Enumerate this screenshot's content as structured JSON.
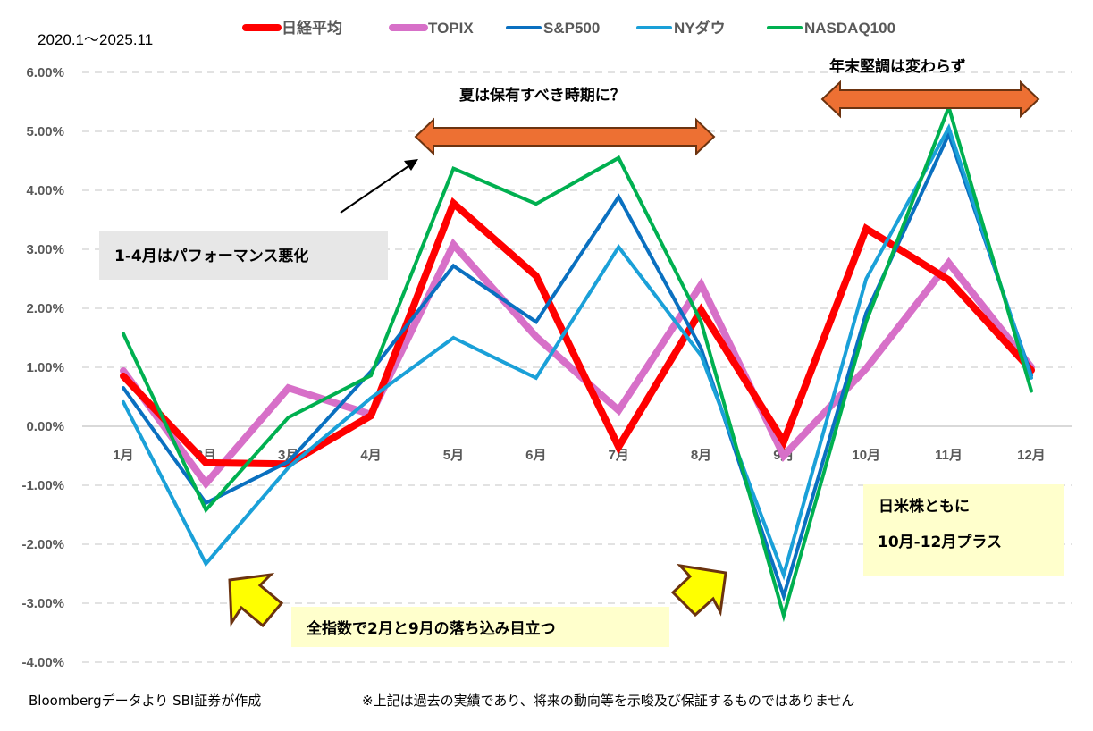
{
  "chart_data": {
    "type": "line",
    "title": "",
    "period_label": "2020.1〜2025.11",
    "xlabel": "",
    "ylabel": "",
    "categories": [
      "1月",
      "2月",
      "3月",
      "4月",
      "5月",
      "6月",
      "7月",
      "8月",
      "9月",
      "10月",
      "11月",
      "12月"
    ],
    "ylim": [
      -4,
      6
    ],
    "yticks": [
      6,
      5,
      4,
      3,
      2,
      1,
      0,
      -1,
      -2,
      -3,
      -4
    ],
    "ytick_labels": [
      "6.00%",
      "5.00%",
      "4.00%",
      "3.00%",
      "2.00%",
      "1.00%",
      "0.00%",
      "-1.00%",
      "-2.00%",
      "-3.00%",
      "-4.00%"
    ],
    "grid": true,
    "legend_position": "top",
    "series": [
      {
        "name": "日経平均",
        "color": "#FF0000",
        "values": [
          0.85,
          -0.62,
          -0.64,
          0.18,
          3.78,
          2.55,
          -0.35,
          1.97,
          -0.26,
          3.35,
          2.48,
          0.95
        ]
      },
      {
        "name": "TOPIX",
        "color": "#D770C8",
        "values": [
          0.94,
          -0.97,
          0.65,
          0.2,
          3.08,
          1.52,
          0.27,
          2.4,
          -0.5,
          0.98,
          2.77,
          1.0
        ]
      },
      {
        "name": "S&P500",
        "color": "#0A70C0",
        "values": [
          0.65,
          -1.3,
          -0.6,
          0.93,
          2.72,
          1.77,
          3.89,
          1.32,
          -2.88,
          1.92,
          4.95,
          0.86
        ]
      },
      {
        "name": "NYダウ",
        "color": "#1AA0D8",
        "values": [
          0.41,
          -2.33,
          -0.7,
          0.48,
          1.5,
          0.82,
          3.04,
          1.2,
          -2.52,
          2.5,
          5.06,
          0.82
        ]
      },
      {
        "name": "NASDAQ100",
        "color": "#00B050",
        "values": [
          1.57,
          -1.42,
          0.15,
          0.86,
          4.37,
          3.77,
          4.55,
          1.77,
          -3.21,
          1.77,
          5.41,
          0.6
        ]
      }
    ],
    "annotations": {
      "summer": "夏は保有すべき時期に？",
      "year_end": "年末堅調は変わらず",
      "jan_apr": "1-4月はパフォーマンス悪化",
      "drops": "全指数で2月と9月の落ち込み目立つ",
      "q4_line1": "日米株ともに",
      "q4_line2": "10月-12月プラス"
    },
    "colors": {
      "double_arrow_fill": "#ED7033",
      "double_arrow_stroke": "#6B3310",
      "yellow_arrow_fill": "#FFFF00",
      "yellow_arrow_stroke": "#6B3310",
      "gray_box": "#E7E7E7",
      "yellow_box": "#FFFFCC",
      "grid": "#D9D9D9"
    }
  },
  "footer": {
    "source": "Bloombergデータより SBI証券が作成",
    "disclaimer": "※上記は過去の実績であり、将来の動向等を示唆及び保証するものではありません"
  }
}
